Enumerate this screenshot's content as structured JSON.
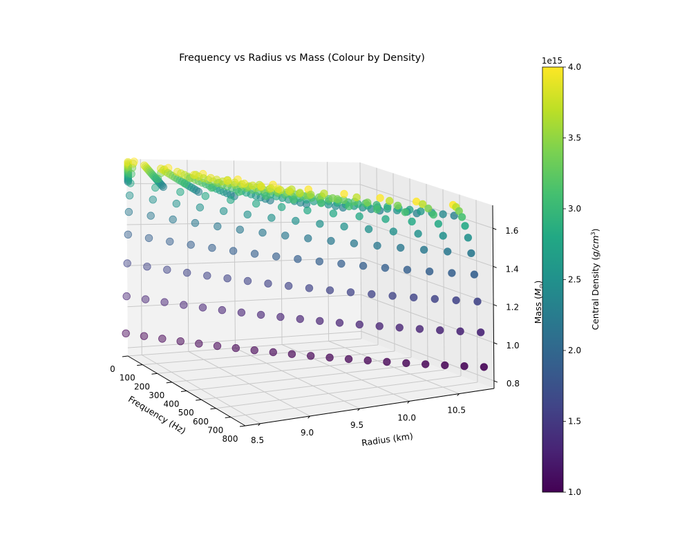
{
  "chart_data": {
    "type": "scatter3d",
    "title": "Frequency vs Radius vs Mass (Colour by Density)",
    "xlabel": "Radius (km)",
    "ylabel": "Frequency (Hz)",
    "zlabel": "Mass (M⊙)",
    "xlim": [
      8.35,
      10.85
    ],
    "ylim": [
      0,
      800
    ],
    "zlim": [
      0.76,
      1.72
    ],
    "x_ticks": [
      "8.5",
      "9.0",
      "9.5",
      "10.0",
      "10.5"
    ],
    "x_tick_values": [
      8.5,
      9.0,
      9.5,
      10.0,
      10.5
    ],
    "y_ticks": [
      "0",
      "100",
      "200",
      "300",
      "400",
      "500",
      "600",
      "700",
      "800"
    ],
    "y_tick_values": [
      0,
      100,
      200,
      300,
      400,
      500,
      600,
      700,
      800
    ],
    "z_ticks": [
      "0.8",
      "1.0",
      "1.2",
      "1.4",
      "1.6"
    ],
    "z_tick_values": [
      0.8,
      1.0,
      1.2,
      1.4,
      1.6
    ],
    "grid": true,
    "colormap": "viridis",
    "colorbar": {
      "label": "Central Density (g/cm³)",
      "label_main": "Central Density (",
      "label_italic": "g/cm",
      "label_sup": "3",
      "label_end": ")",
      "offset_text": "1e15",
      "range": [
        1.0,
        4.0
      ],
      "ticks": [
        "1.0",
        "1.5",
        "2.0",
        "2.5",
        "3.0",
        "3.5",
        "4.0"
      ],
      "tick_values": [
        1.0,
        1.5,
        2.0,
        2.5,
        3.0,
        3.5,
        4.0
      ]
    },
    "series_description": "Each point is a neutron-star model; rows of constant central density with increasing radius and frequency. Mass increases with central density.",
    "density_rows": [
      {
        "density_e15": 1.0,
        "mass": 0.88,
        "points": 20
      },
      {
        "density_e15": 1.3,
        "mass": 1.06,
        "points": 19
      },
      {
        "density_e15": 1.6,
        "mass": 1.22,
        "points": 18
      },
      {
        "density_e15": 1.9,
        "mass": 1.36,
        "points": 17
      },
      {
        "density_e15": 2.2,
        "mass": 1.47,
        "points": 16
      },
      {
        "density_e15": 2.5,
        "mass": 1.55,
        "points": 15
      },
      {
        "density_e15": 2.8,
        "mass": 1.61,
        "points": 14
      },
      {
        "density_e15": 3.1,
        "mass": 1.655,
        "points": 13
      },
      {
        "density_e15": 3.4,
        "mass": 1.685,
        "points": 12
      },
      {
        "density_e15": 3.7,
        "mass": 1.705,
        "points": 11
      },
      {
        "density_e15": 4.0,
        "mass": 1.715,
        "points": 10
      }
    ],
    "radius_range_km": [
      8.3,
      10.85
    ],
    "frequency_range_hz": [
      0,
      800
    ]
  }
}
